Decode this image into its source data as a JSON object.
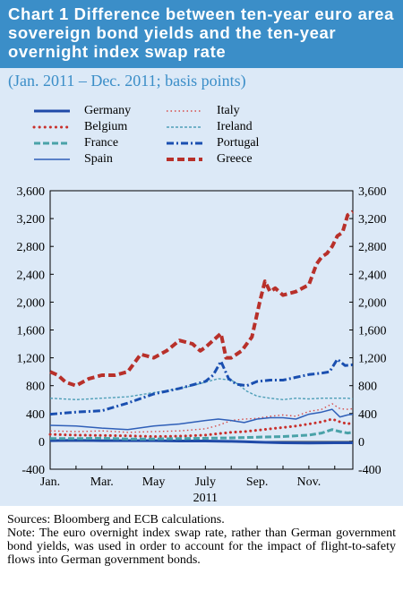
{
  "header": {
    "title": "Chart 1 Difference between ten-year euro area sovereign bond yields and the ten-year overnight index swap rate",
    "subtitle": "(Jan. 2011 – Dec. 2011; basis points)"
  },
  "colors": {
    "header_bg": "#3b8ec8",
    "panel_bg": "#dce9f7",
    "Germany": "#1f4aa8",
    "Belgium": "#c8302c",
    "France": "#4aa2a8",
    "Spain": "#2f5fb8",
    "Italy": "#d64a48",
    "Ireland": "#4f9fb8",
    "Portugal": "#1a4fb0",
    "Greece": "#b8302a"
  },
  "notes": {
    "sources": "Sources: Bloomberg and ECB calculations.",
    "note": "Note: The euro overnight index swap rate, rather than German government bond yields, was used in order to account for the impact of flight-to-safety flows into German government bonds."
  },
  "chart_data": {
    "type": "line",
    "xlabel": "2011",
    "x_ticks": [
      "Jan.",
      "Mar.",
      "May",
      "July",
      "Sep.",
      "Nov."
    ],
    "x_tick_months": [
      0,
      2,
      4,
      6,
      8,
      10
    ],
    "x_range_months": [
      0,
      11.7
    ],
    "ylim": [
      -400,
      3600
    ],
    "y_ticks": [
      -400,
      0,
      400,
      800,
      1200,
      1600,
      2000,
      2400,
      2800,
      3200,
      3600
    ],
    "y_tick_labels": [
      "-400",
      "0",
      "400",
      "800",
      "1,200",
      "1,600",
      "2,000",
      "2,400",
      "2,800",
      "3,200",
      "3,600"
    ],
    "legend_position": "top",
    "series": [
      {
        "name": "Germany",
        "style": "solid-thick",
        "x": [
          0,
          1,
          2,
          3,
          4,
          5,
          6,
          7,
          7.5,
          8,
          9,
          10,
          11,
          11.7
        ],
        "values": [
          10,
          15,
          10,
          10,
          10,
          5,
          5,
          0,
          -5,
          -10,
          -20,
          -25,
          -20,
          -20
        ]
      },
      {
        "name": "Italy",
        "style": "dotted-thin",
        "x": [
          0,
          1,
          2,
          3,
          4,
          5,
          6,
          6.5,
          7,
          7.5,
          8,
          8.5,
          9,
          9.5,
          10,
          10.5,
          10.9,
          11.2,
          11.5,
          11.7
        ],
        "values": [
          150,
          140,
          150,
          130,
          140,
          150,
          180,
          230,
          300,
          320,
          330,
          360,
          380,
          360,
          430,
          460,
          540,
          470,
          460,
          470
        ]
      },
      {
        "name": "Belgium",
        "style": "dotted-thick",
        "x": [
          0,
          1,
          2,
          3,
          4,
          5,
          6,
          6.5,
          7,
          7.5,
          8,
          8.5,
          9,
          9.5,
          10,
          10.5,
          10.9,
          11.2,
          11.5,
          11.7
        ],
        "values": [
          100,
          90,
          85,
          80,
          70,
          75,
          90,
          110,
          130,
          140,
          160,
          180,
          200,
          220,
          250,
          280,
          320,
          280,
          250,
          270
        ]
      },
      {
        "name": "Ireland",
        "style": "dashed-thin",
        "x": [
          0,
          1,
          2,
          3,
          4,
          5,
          5.5,
          6,
          6.5,
          7,
          7.3,
          7.6,
          8,
          8.5,
          9,
          9.5,
          10,
          10.5,
          11,
          11.5,
          11.7
        ],
        "values": [
          620,
          600,
          620,
          640,
          700,
          760,
          800,
          850,
          900,
          880,
          810,
          720,
          650,
          620,
          600,
          620,
          610,
          620,
          620,
          620,
          610
        ]
      },
      {
        "name": "France",
        "style": "dashed-thick",
        "x": [
          0,
          1,
          2,
          3,
          4,
          5,
          6,
          7,
          8,
          9,
          10,
          10.5,
          10.9,
          11.2,
          11.5,
          11.7
        ],
        "values": [
          40,
          40,
          45,
          35,
          35,
          40,
          45,
          50,
          60,
          70,
          90,
          120,
          170,
          140,
          120,
          130
        ]
      },
      {
        "name": "Portugal",
        "style": "dashdot-thick",
        "x": [
          0,
          1,
          2,
          3,
          4,
          5,
          6,
          6.3,
          6.6,
          6.9,
          7.2,
          7.6,
          8,
          8.5,
          9,
          9.5,
          10,
          10.5,
          10.8,
          11.1,
          11.4,
          11.7
        ],
        "values": [
          390,
          420,
          440,
          550,
          680,
          760,
          860,
          950,
          1150,
          900,
          820,
          800,
          860,
          880,
          880,
          920,
          960,
          980,
          1000,
          1180,
          1090,
          1100
        ]
      },
      {
        "name": "Spain",
        "style": "solid-thin",
        "x": [
          0,
          1,
          2,
          3,
          4,
          5,
          6,
          6.5,
          7,
          7.5,
          8,
          8.5,
          9,
          9.5,
          10,
          10.5,
          10.9,
          11.2,
          11.5,
          11.7
        ],
        "values": [
          230,
          220,
          190,
          170,
          220,
          250,
          300,
          320,
          300,
          270,
          320,
          340,
          340,
          320,
          390,
          420,
          460,
          350,
          380,
          390
        ]
      },
      {
        "name": "Greece",
        "style": "dashed-heavy",
        "x": [
          0,
          0.3,
          0.6,
          1,
          1.5,
          2,
          2.5,
          3,
          3.5,
          4,
          4.5,
          5,
          5.5,
          5.8,
          6,
          6.3,
          6.6,
          6.8,
          7,
          7.4,
          7.8,
          8.1,
          8.3,
          8.5,
          8.7,
          9,
          9.5,
          10,
          10.3,
          10.5,
          10.7,
          10.9,
          11.1,
          11.3,
          11.5,
          11.7
        ],
        "values": [
          1000,
          950,
          850,
          800,
          900,
          950,
          950,
          1000,
          1250,
          1200,
          1300,
          1450,
          1400,
          1300,
          1350,
          1450,
          1550,
          1200,
          1200,
          1300,
          1500,
          2000,
          2300,
          2150,
          2200,
          2100,
          2150,
          2250,
          2550,
          2650,
          2700,
          2800,
          2950,
          3000,
          3250,
          3300
        ]
      }
    ]
  }
}
